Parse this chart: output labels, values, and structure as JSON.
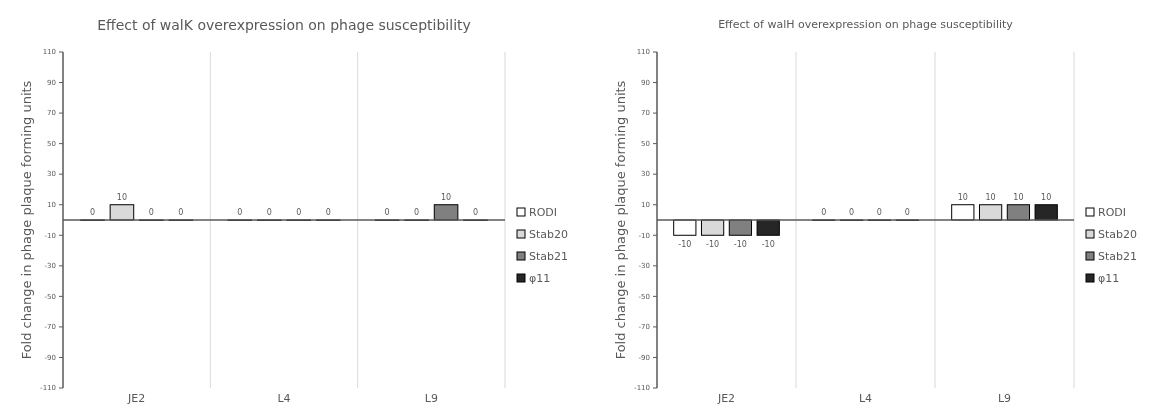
{
  "chart_data": [
    {
      "type": "bar",
      "title": "Effect of walK overexpression on phage susceptibility",
      "ylabel": "Fold change in phage plaque forming units",
      "categories": [
        "JE2",
        "L4",
        "L9"
      ],
      "series": [
        {
          "name": "RODI",
          "color": "#ffffff",
          "values": [
            0,
            0,
            0
          ]
        },
        {
          "name": "Stab20",
          "color": "#d9d9d9",
          "values": [
            10,
            0,
            0
          ]
        },
        {
          "name": "Stab21",
          "color": "#808080",
          "values": [
            0,
            0,
            10
          ]
        },
        {
          "name": "φ11",
          "color": "#262626",
          "values": [
            0,
            0,
            0
          ]
        }
      ],
      "ylim": [
        -110,
        110
      ],
      "yticks": [
        110,
        90,
        70,
        50,
        30,
        10,
        -10,
        -30,
        -50,
        -70,
        -90,
        -110
      ],
      "grid": "x",
      "legend": "right",
      "data_labels": true
    },
    {
      "type": "bar",
      "title": "Effect of walH overexpression on phage susceptibility",
      "ylabel": "Fold change in phage plaque forming units",
      "categories": [
        "JE2",
        "L4",
        "L9"
      ],
      "series": [
        {
          "name": "RODI",
          "color": "#ffffff",
          "values": [
            -10,
            0,
            10
          ]
        },
        {
          "name": "Stab20",
          "color": "#d9d9d9",
          "values": [
            -10,
            0,
            10
          ]
        },
        {
          "name": "Stab21",
          "color": "#808080",
          "values": [
            -10,
            0,
            10
          ]
        },
        {
          "name": "φ11",
          "color": "#262626",
          "values": [
            -10,
            0,
            10
          ]
        }
      ],
      "ylim": [
        -110,
        110
      ],
      "yticks": [
        110,
        90,
        70,
        50,
        30,
        10,
        -10,
        -30,
        -50,
        -70,
        -90,
        -110
      ],
      "grid": "x",
      "legend": "right",
      "data_labels": true
    }
  ]
}
